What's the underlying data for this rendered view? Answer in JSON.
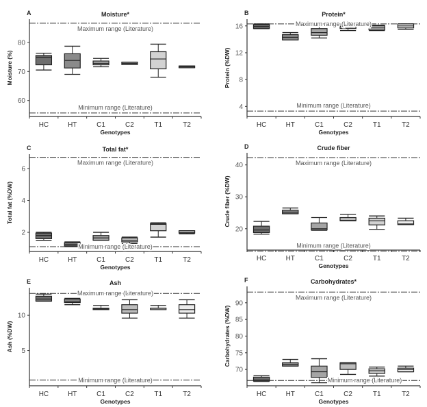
{
  "chart_data": [
    {
      "type": "box",
      "letter": "A",
      "title": "Moisture*",
      "ylabel": "Moisture (%)",
      "xlabel": "Genotypes",
      "ylim": [
        54.5,
        88
      ],
      "yticks": [
        60,
        70,
        80
      ],
      "max_line": 86.6,
      "min_line": 55.7,
      "max_label": "Maximum range (Literature)",
      "min_label": "Minimum range (Literature)",
      "categories": [
        "HC",
        "HT",
        "C1",
        "C2",
        "T1",
        "T2"
      ],
      "boxes": [
        {
          "whisker_low": 70.5,
          "q1": 72.3,
          "median": 74.9,
          "q3": 75.5,
          "whisker_high": 76.3
        },
        {
          "whisker_low": 69.0,
          "q1": 71.2,
          "median": 73.8,
          "q3": 76.1,
          "whisker_high": 78.7
        },
        {
          "whisker_low": 71.6,
          "q1": 72.3,
          "median": 72.8,
          "q3": 73.6,
          "whisker_high": 74.5
        },
        {
          "whisker_low": 72.4,
          "q1": 72.4,
          "median": 72.8,
          "q3": 73.2,
          "whisker_high": 73.2
        },
        {
          "whisker_low": 68.0,
          "q1": 70.9,
          "median": 74.3,
          "q3": 76.8,
          "whisker_high": 79.4
        },
        {
          "whisker_low": 71.3,
          "q1": 71.3,
          "median": 71.6,
          "q3": 71.9,
          "whisker_high": 71.9
        }
      ]
    },
    {
      "type": "box",
      "letter": "B",
      "title": "Protein*",
      "ylabel": "Protein (%DW)",
      "xlabel": "Genotypes",
      "ylim": [
        2.5,
        17
      ],
      "yticks": [
        4,
        8,
        12,
        16
      ],
      "max_line": 16.3,
      "min_line": 3.3,
      "max_label": "Maximum range (Literature)",
      "min_label": "Minimum range (Literature)",
      "categories": [
        "HC",
        "HT",
        "C1",
        "C2",
        "T1",
        "T2"
      ],
      "boxes": [
        {
          "whisker_low": 15.6,
          "q1": 15.6,
          "median": 15.9,
          "q3": 16.2,
          "whisker_high": 16.3
        },
        {
          "whisker_low": 13.9,
          "q1": 13.9,
          "median": 14.3,
          "q3": 14.7,
          "whisker_high": 15.0
        },
        {
          "whisker_low": 14.2,
          "q1": 14.6,
          "median": 15.0,
          "q3": 15.6,
          "whisker_high": 16.3
        },
        {
          "whisker_low": 15.3,
          "q1": 15.6,
          "median": 15.9,
          "q3": 16.1,
          "whisker_high": 16.2
        },
        {
          "whisker_low": 15.3,
          "q1": 15.4,
          "median": 15.7,
          "q3": 16.0,
          "whisker_high": 16.1
        },
        {
          "whisker_low": 15.5,
          "q1": 15.7,
          "median": 16.0,
          "q3": 16.3,
          "whisker_high": 16.3
        }
      ]
    },
    {
      "type": "box",
      "letter": "C",
      "title": "Total fat*",
      "ylabel": "Total fat (%DW)",
      "xlabel": "Genotypes",
      "ylim": [
        0.8,
        6.9
      ],
      "yticks": [
        2,
        4,
        6
      ],
      "max_line": 6.7,
      "min_line": 1.1,
      "max_label": "Maximum range (Literature)",
      "min_label": "Minimum range (Literature)",
      "categories": [
        "HC",
        "HT",
        "C1",
        "C2",
        "T1",
        "T2"
      ],
      "boxes": [
        {
          "whisker_low": 1.5,
          "q1": 1.6,
          "median": 1.8,
          "q3": 1.95,
          "whisker_high": 2.0
        },
        {
          "whisker_low": 1.1,
          "q1": 1.15,
          "median": 1.25,
          "q3": 1.35,
          "whisker_high": 1.4
        },
        {
          "whisker_low": 1.5,
          "q1": 1.5,
          "median": 1.65,
          "q3": 1.8,
          "whisker_high": 2.0
        },
        {
          "whisker_low": 1.3,
          "q1": 1.4,
          "median": 1.5,
          "q3": 1.65,
          "whisker_high": 1.7
        },
        {
          "whisker_low": 1.7,
          "q1": 2.1,
          "median": 2.5,
          "q3": 2.55,
          "whisker_high": 2.6
        },
        {
          "whisker_low": 1.9,
          "q1": 1.95,
          "median": 2.0,
          "q3": 2.1,
          "whisker_high": 2.1
        }
      ]
    },
    {
      "type": "box",
      "letter": "D",
      "title": "Crude fiber",
      "ylabel": "Crude fiber  (%DW)",
      "xlabel": "Genotypes",
      "ylim": [
        13.3,
        43.8
      ],
      "yticks": [
        20,
        30,
        40
      ],
      "max_line": 42.3,
      "min_line": 13.0,
      "max_label": "Maximum range (Literature)",
      "min_label": "Minimum range (Literature)",
      "categories": [
        "HC",
        "HT",
        "C1",
        "C2",
        "T1",
        "T2"
      ],
      "boxes": [
        {
          "whisker_low": 18.3,
          "q1": 18.8,
          "median": 19.6,
          "q3": 20.8,
          "whisker_high": 22.3
        },
        {
          "whisker_low": 24.7,
          "q1": 24.7,
          "median": 25.2,
          "q3": 25.8,
          "whisker_high": 26.5
        },
        {
          "whisker_low": 19.5,
          "q1": 19.6,
          "median": 20.0,
          "q3": 21.8,
          "whisker_high": 23.5
        },
        {
          "whisker_low": 22.5,
          "q1": 22.5,
          "median": 22.6,
          "q3": 23.5,
          "whisker_high": 24.5
        },
        {
          "whisker_low": 19.8,
          "q1": 21.2,
          "median": 22.5,
          "q3": 23.3,
          "whisker_high": 24.0
        },
        {
          "whisker_low": 21.3,
          "q1": 21.3,
          "median": 21.5,
          "q3": 22.5,
          "whisker_high": 23.3
        }
      ]
    },
    {
      "type": "box",
      "letter": "E",
      "title": "Ash",
      "ylabel": "Ash (%DW)",
      "xlabel": "Genotypes",
      "ylim": [
        0,
        13.9
      ],
      "yticks": [
        5,
        10
      ],
      "max_line": 13.1,
      "min_line": 0.8,
      "max_label": "Maximum range (Literature)",
      "min_label": "Minimum range (Literature)",
      "categories": [
        "HC",
        "HT",
        "C1",
        "C2",
        "T1",
        "T2"
      ],
      "boxes": [
        {
          "whisker_low": 12.0,
          "q1": 12.0,
          "median": 12.3,
          "q3": 12.7,
          "whisker_high": 13.0
        },
        {
          "whisker_low": 11.5,
          "q1": 11.8,
          "median": 12.0,
          "q3": 12.3,
          "whisker_high": 12.4
        },
        {
          "whisker_low": 10.8,
          "q1": 10.8,
          "median": 10.9,
          "q3": 11.0,
          "whisker_high": 11.4
        },
        {
          "whisker_low": 9.6,
          "q1": 10.3,
          "median": 10.8,
          "q3": 11.5,
          "whisker_high": 12.2
        },
        {
          "whisker_low": 10.8,
          "q1": 10.8,
          "median": 11.0,
          "q3": 11.0,
          "whisker_high": 11.4
        },
        {
          "whisker_low": 9.6,
          "q1": 10.3,
          "median": 10.8,
          "q3": 11.5,
          "whisker_high": 12.2
        }
      ]
    },
    {
      "type": "box",
      "letter": "F",
      "title": "Carbohydrates*",
      "ylabel": "Carbohydrates (%DW)",
      "xlabel": "Genotypes",
      "ylim": [
        65.1,
        94.9
      ],
      "yticks": [
        70,
        75,
        80,
        85,
        90
      ],
      "max_line": 93.2,
      "min_line": 66.7,
      "max_label": "Maximum range (Literature)",
      "min_label": "Minimum range (Literature)",
      "categories": [
        "HC",
        "HT",
        "C1",
        "C2",
        "T1",
        "T2"
      ],
      "boxes": [
        {
          "whisker_low": 66.4,
          "q1": 66.5,
          "median": 66.8,
          "q3": 67.7,
          "whisker_high": 68.1
        },
        {
          "whisker_low": 71.0,
          "q1": 71.0,
          "median": 71.5,
          "q3": 72.0,
          "whisker_high": 73.0
        },
        {
          "whisker_low": 66.0,
          "q1": 67.6,
          "median": 69.3,
          "q3": 71.0,
          "whisker_high": 73.2
        },
        {
          "whisker_low": 68.5,
          "q1": 70.0,
          "median": 71.7,
          "q3": 72.0,
          "whisker_high": 72.0
        },
        {
          "whisker_low": 68.0,
          "q1": 68.8,
          "median": 69.6,
          "q3": 70.2,
          "whisker_high": 70.7
        },
        {
          "whisker_low": 69.3,
          "q1": 69.3,
          "median": 70.0,
          "q3": 70.4,
          "whisker_high": 71.0
        }
      ]
    }
  ],
  "colors": {
    "fills": [
      "#6e6e6e",
      "#8a8a8a",
      "#a5a5a5",
      "#bdbdbd",
      "#d2d2d2",
      "#ececec"
    ],
    "line": "#222222",
    "range": "#333333"
  }
}
